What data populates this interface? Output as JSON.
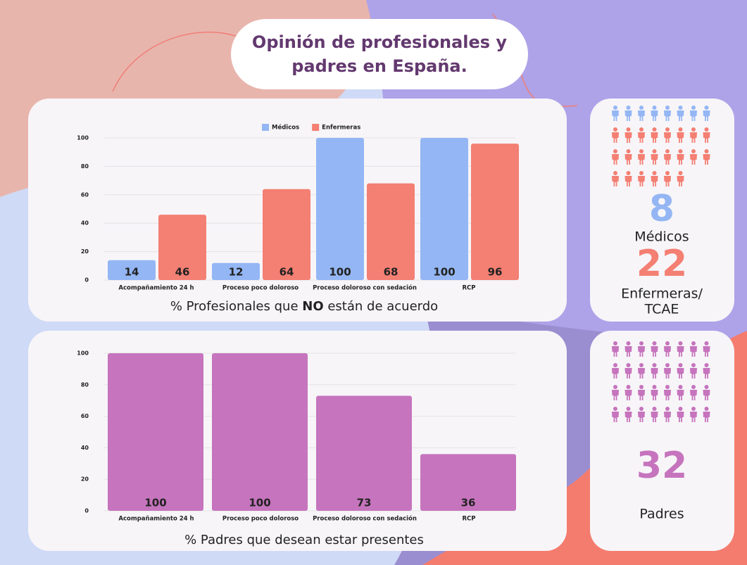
{
  "title": [
    "Opinión de profesionales y",
    "padres en España."
  ],
  "chart_data": [
    {
      "type": "bar",
      "caption": {
        "before": "% Profesionales que ",
        "emphasis": "NO",
        "after": " están de acuerdo"
      },
      "categories": [
        "Acompañamiento 24 h",
        "Proceso poco doloroso",
        "Proceso doloroso con sedación",
        "RCP"
      ],
      "series": [
        {
          "name": "Médicos",
          "color": "#94b6f4",
          "values": [
            14,
            12,
            100,
            100
          ]
        },
        {
          "name": "Enfermeras",
          "color": "#f47f73",
          "values": [
            46,
            64,
            68,
            96
          ]
        }
      ],
      "ylim": [
        0,
        100
      ],
      "yticks": [
        0,
        20,
        40,
        60,
        80,
        100
      ],
      "grid": true,
      "legend": "top"
    },
    {
      "type": "bar",
      "caption": {
        "before": "% Padres que desean estar presentes"
      },
      "categories": [
        "Acompañamiento 24 h",
        "Proceso poco doloroso",
        "Proceso doloroso con sedación",
        "RCP"
      ],
      "values": [
        100,
        100,
        73,
        36
      ],
      "color": "#c674bd",
      "ylim": [
        0,
        100
      ],
      "yticks": [
        0,
        20,
        40,
        60,
        80,
        100
      ],
      "grid": true
    }
  ],
  "panels": [
    {
      "stats": [
        {
          "value": 8,
          "label": [
            "Médicos"
          ],
          "color": "#94b6f4"
        },
        {
          "value": 22,
          "label": [
            "Enfermeras/",
            "TCAE"
          ],
          "color": "#f47f73"
        }
      ]
    },
    {
      "stats": [
        {
          "value": 32,
          "label": [
            "Padres"
          ],
          "color": "#c674bd"
        }
      ]
    }
  ]
}
